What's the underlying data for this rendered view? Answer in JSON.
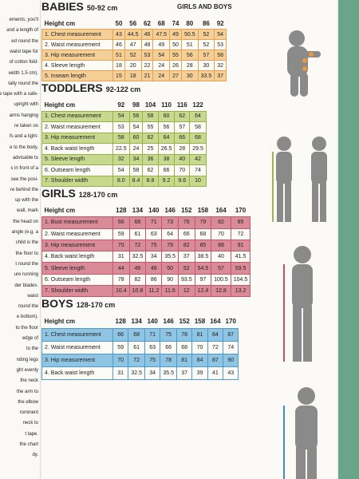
{
  "left_column": [
    "ements, you'll",
    "and a length of",
    "ed round the",
    "waist tape for",
    "of cotton fold-",
    "width 1.5 cm).",
    "tally round the",
    "the tape with a safe-",
    "upright with",
    "arms hanging",
    "re taken on",
    "fs and a light-",
    "e to the body.",
    "advisable to",
    "s in front of a",
    "see the posi-",
    "re behind the",
    "up with the",
    "wall, mark",
    "the head on",
    "angle (e.g. a",
    "child is the",
    "the floor to",
    "t round the",
    "ure running",
    "der blades.",
    "waist",
    "round the",
    "e bottom).",
    "to the floor",
    "edge of",
    "to the",
    "nding legs",
    "ght evenly",
    "the neck",
    "the arm to",
    "the elbow",
    "rominent",
    "neck to",
    "t tape.",
    "the chart",
    "dy."
  ],
  "sections": [
    {
      "title": "BABIES",
      "range": "50-92 cm",
      "header": [
        "Height cm",
        "50",
        "56",
        "62",
        "68",
        "74",
        "80",
        "86",
        "92"
      ],
      "rows": [
        [
          "1. Chest measurement",
          "43",
          "44.5",
          "46",
          "47.5",
          "49",
          "50.5",
          "52",
          "54"
        ],
        [
          "2. Waist measurement",
          "46",
          "47",
          "48",
          "49",
          "50",
          "51",
          "52",
          "53"
        ],
        [
          "3. Hip measurement",
          "51",
          "52",
          "53",
          "54",
          "55",
          "56",
          "57",
          "58"
        ],
        [
          "4. Sleeve length",
          "18",
          "20",
          "22",
          "24",
          "26",
          "28",
          "30",
          "32"
        ],
        [
          "5. Inseam length",
          "15",
          "18",
          "21",
          "24",
          "27",
          "30",
          "33.5",
          "37"
        ]
      ]
    },
    {
      "title": "TODDLERS",
      "range": "92-122 cm",
      "subtitle": "GIRLS AND BOYS",
      "header": [
        "Height cm",
        "92",
        "98",
        "104",
        "110",
        "116",
        "122"
      ],
      "rows": [
        [
          "1. Chest measurement",
          "54",
          "56",
          "58",
          "60",
          "62",
          "64"
        ],
        [
          "2. Waist measurement",
          "53",
          "54",
          "55",
          "56",
          "57",
          "58"
        ],
        [
          "3. Hip measurement",
          "58",
          "60",
          "62",
          "64",
          "66",
          "68"
        ],
        [
          "4. Back waist length",
          "22.5",
          "24",
          "25",
          "26.5",
          "28",
          "29.5"
        ],
        [
          "5. Sleeve length",
          "32",
          "34",
          "36",
          "38",
          "40",
          "42"
        ],
        [
          "6. Outseam length",
          "54",
          "58",
          "62",
          "66",
          "70",
          "74"
        ],
        [
          "7. Shoulder width",
          "8.0",
          "8.4",
          "8.8",
          "9.2",
          "9.6",
          "10"
        ]
      ]
    },
    {
      "title": "GIRLS",
      "range": "128-170 cm",
      "header": [
        "Height cm",
        "128",
        "134",
        "140",
        "146",
        "152",
        "158",
        "164",
        "170"
      ],
      "rows": [
        [
          "1. Bust measurement",
          "66",
          "68",
          "71",
          "73",
          "76",
          "79",
          "82",
          "85"
        ],
        [
          "2. Waist measurement",
          "59",
          "61",
          "63",
          "64",
          "66",
          "68",
          "70",
          "72"
        ],
        [
          "3. Hip measurement",
          "70",
          "72",
          "75",
          "79",
          "82",
          "85",
          "88",
          "91"
        ],
        [
          "4. Back waist length",
          "31",
          "32.5",
          "34",
          "35.5",
          "37",
          "38.5",
          "40",
          "41.5"
        ],
        [
          "5. Sleeve length",
          "44",
          "46",
          "48",
          "50",
          "52",
          "54.5",
          "57",
          "59.5"
        ],
        [
          "6. Outseam length",
          "78",
          "82",
          "86",
          "90",
          "93.5",
          "97",
          "100.5",
          "104.5"
        ],
        [
          "7. Shoulder width",
          "10.4",
          "10.8",
          "11.2",
          "11.6",
          "12",
          "12.4",
          "12.8",
          "13.2"
        ]
      ]
    },
    {
      "title": "BOYS",
      "range": "128-170 cm",
      "header": [
        "Height cm",
        "128",
        "134",
        "140",
        "146",
        "152",
        "158",
        "164",
        "170"
      ],
      "rows": [
        [
          "1. Chest measurement",
          "66",
          "68",
          "71",
          "75",
          "78",
          "81",
          "84",
          "87"
        ],
        [
          "2. Waist measurement",
          "59",
          "61",
          "63",
          "66",
          "68",
          "70",
          "72",
          "74"
        ],
        [
          "3. Hip measurement",
          "70",
          "72",
          "75",
          "78",
          "81",
          "84",
          "87",
          "90"
        ],
        [
          "4. Back waist length",
          "31",
          "32.5",
          "34",
          "35.5",
          "37",
          "39",
          "41",
          "43"
        ]
      ]
    }
  ]
}
